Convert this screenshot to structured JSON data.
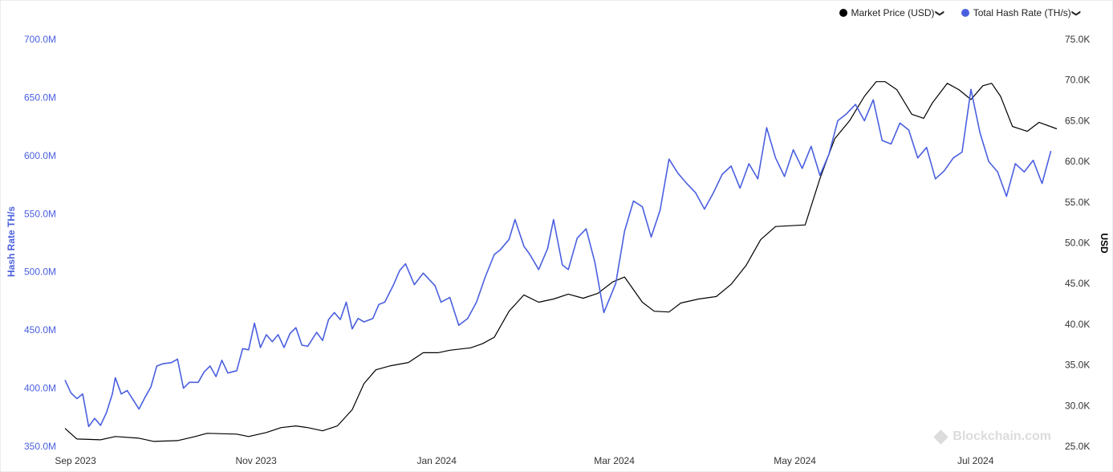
{
  "legend": {
    "price_label": "Market Price (USD)",
    "hash_label": "Total Hash Rate (TH/s)",
    "chevron": "❯"
  },
  "watermark": "Blockchain.com",
  "colors": {
    "hash": "#4a5fe0",
    "price": "#000000",
    "grid": "#ffffff"
  },
  "chart_data": {
    "type": "line",
    "title": "",
    "left_axis": {
      "label": "Hash Rate TH/s",
      "ticks": [
        "350.0M",
        "400.0M",
        "450.0M",
        "500.0M",
        "550.0M",
        "600.0M",
        "650.0M",
        "700.0M"
      ],
      "range": [
        350,
        700
      ]
    },
    "right_axis": {
      "label": "USD",
      "ticks": [
        "25.0K",
        "30.0K",
        "35.0K",
        "40.0K",
        "45.0K",
        "50.0K",
        "55.0K",
        "60.0K",
        "65.0K",
        "70.0K",
        "75.0K"
      ],
      "range": [
        25,
        75
      ]
    },
    "x_axis": {
      "ticks": [
        "Sep 2023",
        "Nov 2023",
        "Jan 2024",
        "Mar 2024",
        "May 2024",
        "Jul 2024"
      ],
      "start": "2023-08-29",
      "end": "2024-07-29"
    },
    "series": [
      {
        "name": "Market Price (USD)",
        "axis": "right",
        "unit": "thousand USD",
        "points": [
          [
            "2023-08-29",
            27.2
          ],
          [
            "2023-09-02",
            25.9
          ],
          [
            "2023-09-10",
            25.8
          ],
          [
            "2023-09-15",
            26.2
          ],
          [
            "2023-09-23",
            26.0
          ],
          [
            "2023-09-28",
            25.6
          ],
          [
            "2023-10-06",
            25.7
          ],
          [
            "2023-10-12",
            26.2
          ],
          [
            "2023-10-16",
            26.6
          ],
          [
            "2023-10-26",
            26.5
          ],
          [
            "2023-10-30",
            26.2
          ],
          [
            "2023-11-05",
            26.7
          ],
          [
            "2023-11-10",
            27.3
          ],
          [
            "2023-11-15",
            27.5
          ],
          [
            "2023-11-19",
            27.3
          ],
          [
            "2023-11-24",
            26.9
          ],
          [
            "2023-11-29",
            27.5
          ],
          [
            "2023-12-04",
            29.5
          ],
          [
            "2023-12-08",
            32.7
          ],
          [
            "2023-12-12",
            34.4
          ],
          [
            "2023-12-17",
            34.9
          ],
          [
            "2023-12-23",
            35.3
          ],
          [
            "2023-12-28",
            36.5
          ],
          [
            "2024-01-02",
            36.5
          ],
          [
            "2024-01-06",
            36.8
          ],
          [
            "2024-01-13",
            37.1
          ],
          [
            "2024-01-17",
            37.6
          ],
          [
            "2024-01-21",
            38.4
          ],
          [
            "2024-01-26",
            41.6
          ],
          [
            "2024-01-31",
            43.6
          ],
          [
            "2024-02-05",
            42.7
          ],
          [
            "2024-02-10",
            43.1
          ],
          [
            "2024-02-15",
            43.7
          ],
          [
            "2024-02-20",
            43.2
          ],
          [
            "2024-02-25",
            43.8
          ],
          [
            "2024-03-01",
            45.2
          ],
          [
            "2024-03-05",
            45.8
          ],
          [
            "2024-03-11",
            42.7
          ],
          [
            "2024-03-15",
            41.6
          ],
          [
            "2024-03-20",
            41.5
          ],
          [
            "2024-03-24",
            42.6
          ],
          [
            "2024-03-30",
            43.1
          ],
          [
            "2024-04-05",
            43.4
          ],
          [
            "2024-04-10",
            44.9
          ],
          [
            "2024-04-15",
            47.2
          ],
          [
            "2024-04-20",
            50.4
          ],
          [
            "2024-04-25",
            52.0
          ],
          [
            "2024-04-30",
            52.1
          ],
          [
            "2024-05-05",
            52.2
          ],
          [
            "2024-05-10",
            57.9
          ],
          [
            "2024-05-15",
            62.8
          ],
          [
            "2024-05-20",
            65.0
          ],
          [
            "2024-05-25",
            68.0
          ],
          [
            "2024-05-29",
            69.8
          ],
          [
            "2024-06-01",
            69.8
          ],
          [
            "2024-06-05",
            68.8
          ],
          [
            "2024-06-10",
            65.8
          ],
          [
            "2024-06-14",
            65.3
          ],
          [
            "2024-06-17",
            67.2
          ],
          [
            "2024-06-22",
            69.6
          ],
          [
            "2024-06-26",
            68.8
          ],
          [
            "2024-06-30",
            67.6
          ],
          [
            "2024-07-04",
            69.3
          ],
          [
            "2024-07-07",
            69.6
          ],
          [
            "2024-07-10",
            68.0
          ],
          [
            "2024-07-14",
            64.3
          ],
          [
            "2024-07-19",
            63.7
          ],
          [
            "2024-07-23",
            64.8
          ],
          [
            "2024-07-29",
            64.0
          ]
        ]
      },
      {
        "name": "Total Hash Rate (TH/s)",
        "axis": "left",
        "unit": "million TH/s",
        "points": [
          [
            "2023-08-29",
            407
          ],
          [
            "2023-08-31",
            396
          ],
          [
            "2023-09-02",
            391
          ],
          [
            "2023-09-04",
            395
          ],
          [
            "2023-09-06",
            367
          ],
          [
            "2023-09-08",
            374
          ],
          [
            "2023-09-10",
            368
          ],
          [
            "2023-09-12",
            379
          ],
          [
            "2023-09-14",
            395
          ],
          [
            "2023-09-15",
            409
          ],
          [
            "2023-09-17",
            395
          ],
          [
            "2023-09-19",
            398
          ],
          [
            "2023-09-21",
            390
          ],
          [
            "2023-09-23",
            382
          ],
          [
            "2023-09-25",
            392
          ],
          [
            "2023-09-27",
            401
          ],
          [
            "2023-09-29",
            419
          ],
          [
            "2023-10-01",
            421
          ],
          [
            "2023-10-04",
            422
          ],
          [
            "2023-10-06",
            425
          ],
          [
            "2023-10-08",
            400
          ],
          [
            "2023-10-10",
            405
          ],
          [
            "2023-10-13",
            405
          ],
          [
            "2023-10-15",
            414
          ],
          [
            "2023-10-17",
            419
          ],
          [
            "2023-10-19",
            410
          ],
          [
            "2023-10-21",
            424
          ],
          [
            "2023-10-23",
            413
          ],
          [
            "2023-10-26",
            415
          ],
          [
            "2023-10-28",
            434
          ],
          [
            "2023-10-30",
            433
          ],
          [
            "2023-11-01",
            456
          ],
          [
            "2023-11-03",
            435
          ],
          [
            "2023-11-05",
            446
          ],
          [
            "2023-11-07",
            440
          ],
          [
            "2023-11-09",
            446
          ],
          [
            "2023-11-11",
            435
          ],
          [
            "2023-11-13",
            447
          ],
          [
            "2023-11-15",
            452
          ],
          [
            "2023-11-17",
            437
          ],
          [
            "2023-11-19",
            436
          ],
          [
            "2023-11-22",
            448
          ],
          [
            "2023-11-24",
            441
          ],
          [
            "2023-11-26",
            459
          ],
          [
            "2023-11-28",
            465
          ],
          [
            "2023-11-30",
            459
          ],
          [
            "2023-12-02",
            474
          ],
          [
            "2023-12-04",
            451
          ],
          [
            "2023-12-06",
            460
          ],
          [
            "2023-12-08",
            457
          ],
          [
            "2023-12-11",
            460
          ],
          [
            "2023-12-13",
            472
          ],
          [
            "2023-12-15",
            474
          ],
          [
            "2023-12-18",
            489
          ],
          [
            "2023-12-20",
            501
          ],
          [
            "2023-12-22",
            507
          ],
          [
            "2023-12-25",
            489
          ],
          [
            "2023-12-28",
            499
          ],
          [
            "2024-01-01",
            488
          ],
          [
            "2024-01-03",
            474
          ],
          [
            "2024-01-06",
            478
          ],
          [
            "2024-01-09",
            454
          ],
          [
            "2024-01-12",
            460
          ],
          [
            "2024-01-15",
            474
          ],
          [
            "2024-01-18",
            496
          ],
          [
            "2024-01-21",
            515
          ],
          [
            "2024-01-23",
            519
          ],
          [
            "2024-01-26",
            528
          ],
          [
            "2024-01-28",
            545
          ],
          [
            "2024-01-31",
            522
          ],
          [
            "2024-02-02",
            515
          ],
          [
            "2024-02-05",
            502
          ],
          [
            "2024-02-08",
            520
          ],
          [
            "2024-02-10",
            545
          ],
          [
            "2024-02-13",
            506
          ],
          [
            "2024-02-15",
            502
          ],
          [
            "2024-02-18",
            529
          ],
          [
            "2024-02-21",
            537
          ],
          [
            "2024-02-24",
            508
          ],
          [
            "2024-02-27",
            465
          ],
          [
            "2024-03-02",
            490
          ],
          [
            "2024-03-05",
            535
          ],
          [
            "2024-03-08",
            561
          ],
          [
            "2024-03-11",
            556
          ],
          [
            "2024-03-14",
            530
          ],
          [
            "2024-03-17",
            553
          ],
          [
            "2024-03-20",
            597
          ],
          [
            "2024-03-23",
            585
          ],
          [
            "2024-03-26",
            576
          ],
          [
            "2024-03-29",
            568
          ],
          [
            "2024-04-01",
            554
          ],
          [
            "2024-04-04",
            568
          ],
          [
            "2024-04-07",
            584
          ],
          [
            "2024-04-10",
            591
          ],
          [
            "2024-04-13",
            572
          ],
          [
            "2024-04-16",
            593
          ],
          [
            "2024-04-19",
            580
          ],
          [
            "2024-04-22",
            624
          ],
          [
            "2024-04-25",
            598
          ],
          [
            "2024-04-28",
            582
          ],
          [
            "2024-05-01",
            605
          ],
          [
            "2024-05-04",
            589
          ],
          [
            "2024-05-07",
            608
          ],
          [
            "2024-05-10",
            583
          ],
          [
            "2024-05-13",
            601
          ],
          [
            "2024-05-16",
            630
          ],
          [
            "2024-05-19",
            636
          ],
          [
            "2024-05-22",
            644
          ],
          [
            "2024-05-25",
            630
          ],
          [
            "2024-05-28",
            648
          ],
          [
            "2024-05-31",
            613
          ],
          [
            "2024-06-03",
            610
          ],
          [
            "2024-06-06",
            628
          ],
          [
            "2024-06-09",
            622
          ],
          [
            "2024-06-12",
            598
          ],
          [
            "2024-06-15",
            607
          ],
          [
            "2024-06-18",
            580
          ],
          [
            "2024-06-21",
            587
          ],
          [
            "2024-06-24",
            598
          ],
          [
            "2024-06-27",
            603
          ],
          [
            "2024-06-30",
            657
          ],
          [
            "2024-07-03",
            620
          ],
          [
            "2024-07-06",
            595
          ],
          [
            "2024-07-09",
            586
          ],
          [
            "2024-07-12",
            565
          ],
          [
            "2024-07-15",
            593
          ],
          [
            "2024-07-18",
            586
          ],
          [
            "2024-07-21",
            596
          ],
          [
            "2024-07-24",
            576
          ],
          [
            "2024-07-27",
            604
          ]
        ]
      }
    ]
  }
}
